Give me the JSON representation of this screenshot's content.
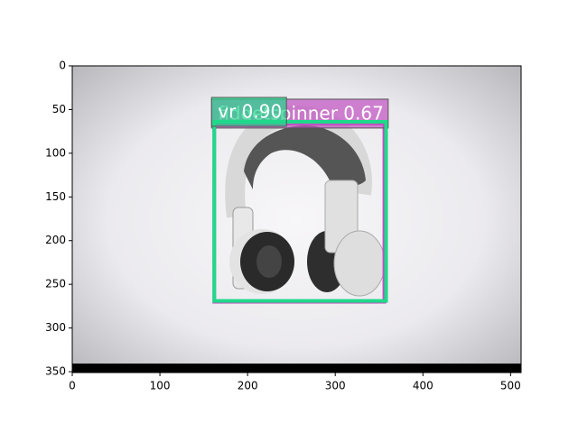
{
  "chart_data": {
    "type": "image",
    "xlim": [
      0,
      512
    ],
    "ylim": [
      351,
      0
    ],
    "xticks": [
      0,
      100,
      200,
      300,
      400,
      500
    ],
    "yticks": [
      0,
      50,
      100,
      150,
      200,
      250,
      300,
      350
    ],
    "boxes": [
      {
        "label": "fidgetspinner 0.67",
        "color": "#c050c0",
        "x": [
          162,
          356
        ],
        "y": [
          66,
          270
        ]
      },
      {
        "label": "vr 0.90",
        "color": "#1fd98a",
        "x": [
          162,
          358
        ],
        "y": [
          64,
          269
        ]
      }
    ]
  }
}
